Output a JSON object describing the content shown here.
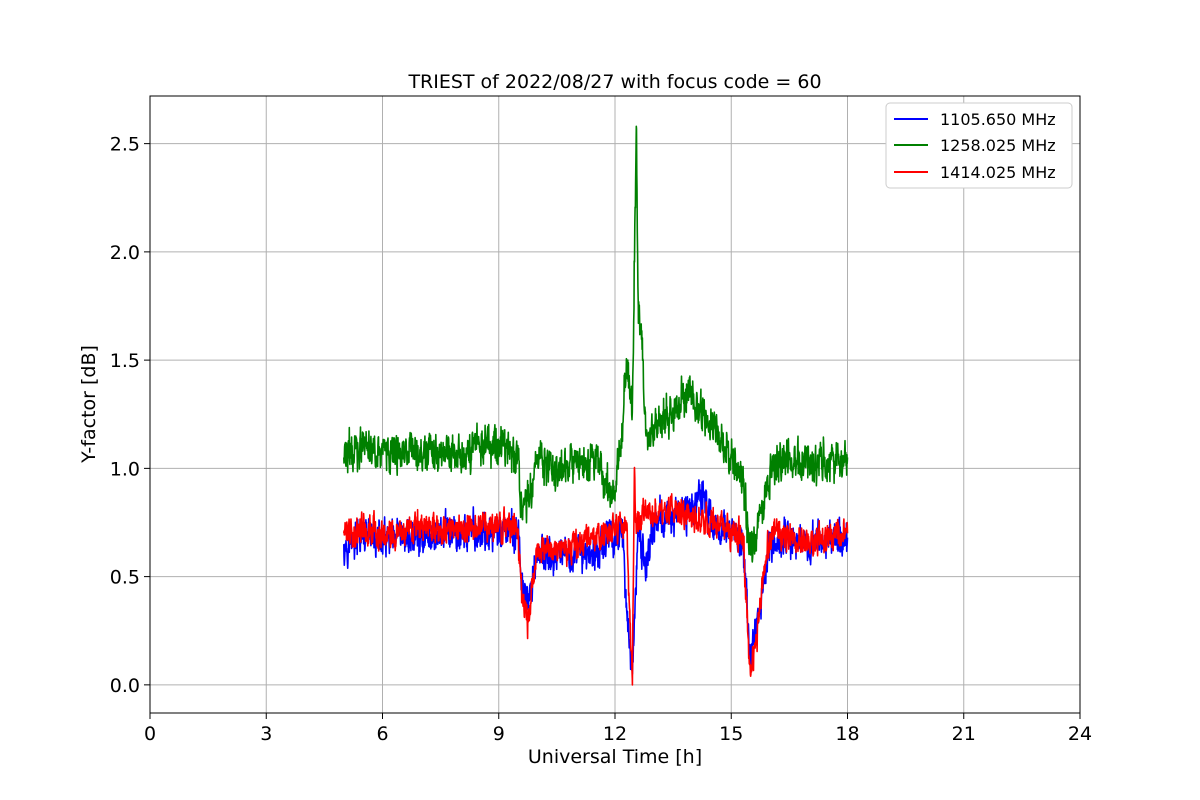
{
  "chart_data": {
    "type": "line",
    "title": "TRIEST of 2022/08/27 with focus code = 60",
    "xlabel": "Universal Time [h]",
    "ylabel": "Y-factor [dB]",
    "xlim": [
      0,
      24
    ],
    "ylim": [
      -0.13,
      2.72
    ],
    "xticks": [
      "0",
      "3",
      "6",
      "9",
      "12",
      "15",
      "18",
      "21",
      "24"
    ],
    "yticks": [
      "0.0",
      "0.5",
      "1.0",
      "1.5",
      "2.0",
      "2.5"
    ],
    "grid": true,
    "legend_position": "top-right",
    "series": [
      {
        "name": "1105.650 MHz",
        "color": "#0000ff",
        "x": [
          5.0,
          5.5,
          6.0,
          6.5,
          7.0,
          7.5,
          8.0,
          8.5,
          9.0,
          9.5,
          9.6,
          9.75,
          10.0,
          10.5,
          11.0,
          11.5,
          12.0,
          12.2,
          12.35,
          12.45,
          12.6,
          12.8,
          13.0,
          13.5,
          14.0,
          14.2,
          14.5,
          15.0,
          15.3,
          15.5,
          16.0,
          16.5,
          17.0,
          17.5,
          18.0
        ],
        "values": [
          0.65,
          0.68,
          0.66,
          0.67,
          0.68,
          0.7,
          0.69,
          0.7,
          0.71,
          0.7,
          0.45,
          0.35,
          0.62,
          0.58,
          0.6,
          0.62,
          0.7,
          0.68,
          0.25,
          0.05,
          0.7,
          0.55,
          0.75,
          0.78,
          0.82,
          0.9,
          0.75,
          0.7,
          0.65,
          0.1,
          0.65,
          0.68,
          0.66,
          0.67,
          0.68
        ]
      },
      {
        "name": "1258.025 MHz",
        "color": "#008000",
        "x": [
          5.0,
          5.5,
          6.0,
          6.5,
          7.0,
          7.5,
          8.0,
          8.5,
          9.0,
          9.5,
          9.6,
          9.75,
          10.0,
          10.5,
          11.0,
          11.5,
          12.0,
          12.3,
          12.45,
          12.55,
          12.6,
          12.7,
          12.8,
          13.0,
          13.5,
          13.8,
          14.0,
          14.5,
          15.0,
          15.3,
          15.5,
          16.0,
          16.5,
          17.0,
          17.5,
          18.0
        ],
        "values": [
          1.05,
          1.1,
          1.08,
          1.07,
          1.08,
          1.05,
          1.06,
          1.1,
          1.12,
          1.05,
          0.8,
          0.85,
          1.05,
          1.0,
          1.02,
          1.05,
          0.85,
          1.45,
          1.3,
          2.58,
          1.75,
          1.55,
          1.15,
          1.2,
          1.25,
          1.35,
          1.3,
          1.2,
          1.05,
          0.95,
          0.6,
          1.0,
          1.05,
          1.03,
          1.02,
          1.05
        ]
      },
      {
        "name": "1414.025 MHz",
        "color": "#ff0000",
        "x": [
          5.0,
          5.5,
          6.0,
          6.5,
          7.0,
          7.5,
          8.0,
          8.5,
          9.0,
          9.5,
          9.6,
          9.75,
          10.0,
          10.5,
          11.0,
          11.5,
          12.0,
          12.3,
          12.45,
          12.5,
          12.55,
          12.7,
          13.0,
          13.5,
          14.0,
          14.5,
          15.0,
          15.3,
          15.5,
          16.0,
          16.5,
          17.0,
          17.5,
          18.0
        ],
        "values": [
          0.7,
          0.72,
          0.7,
          0.71,
          0.72,
          0.73,
          0.72,
          0.74,
          0.73,
          0.72,
          0.42,
          0.3,
          0.65,
          0.62,
          0.65,
          0.68,
          0.72,
          0.75,
          0.0,
          1.0,
          0.7,
          0.8,
          0.78,
          0.8,
          0.78,
          0.75,
          0.72,
          0.7,
          0.04,
          0.7,
          0.68,
          0.67,
          0.68,
          0.7
        ]
      }
    ]
  }
}
